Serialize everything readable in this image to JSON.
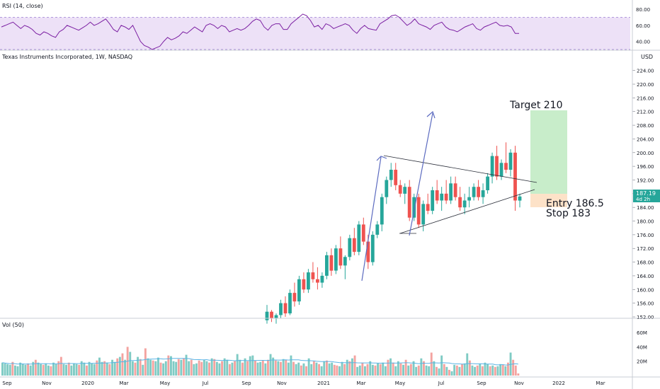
{
  "header": {
    "rsi_label": "RSI (14, close)",
    "main_title": "Texas Instruments Incorporated, 1W, NASDAQ",
    "currency": "USD",
    "vol_label": "Vol (50)"
  },
  "annotations": {
    "target_label": "Target 210",
    "entry_label": "Entry 186.5",
    "stop_label": "Stop  183",
    "last_price": "187.19",
    "last_price_sub": "4d 2h"
  },
  "chart_data": [
    {
      "type": "line",
      "name": "rsi",
      "ylim": [
        30,
        88
      ],
      "yticks": [
        80,
        60,
        40
      ],
      "overbought": 70,
      "oversold": 30,
      "values": [
        58,
        60,
        62,
        64,
        60,
        56,
        60,
        58,
        55,
        50,
        48,
        52,
        50,
        47,
        45,
        52,
        55,
        60,
        58,
        56,
        54,
        57,
        60,
        64,
        60,
        62,
        65,
        68,
        62,
        55,
        52,
        60,
        58,
        55,
        60,
        50,
        40,
        35,
        33,
        30,
        32,
        34,
        40,
        45,
        42,
        44,
        47,
        52,
        50,
        54,
        58,
        55,
        52,
        60,
        62,
        60,
        56,
        60,
        58,
        52,
        54,
        56,
        54,
        56,
        60,
        65,
        68,
        66,
        58,
        54,
        60,
        62,
        62,
        55,
        55,
        62,
        66,
        70,
        74,
        72,
        66,
        58,
        60,
        55,
        62,
        60,
        56,
        58,
        60,
        62,
        60,
        54,
        50,
        56,
        60,
        56,
        55,
        54,
        62,
        65,
        68,
        72,
        73,
        70,
        65,
        60,
        63,
        68,
        62,
        60,
        58,
        55,
        60,
        62,
        64,
        58,
        55,
        54,
        52,
        55,
        58,
        60,
        62,
        56,
        54,
        58,
        60,
        62,
        64,
        60,
        59,
        60,
        58,
        50,
        50
      ]
    },
    {
      "type": "candlestick",
      "name": "price",
      "ylim": [
        152,
        226
      ],
      "yticks": [
        224,
        220,
        216,
        212,
        208,
        204,
        200,
        196,
        192,
        188,
        184,
        180,
        176,
        172,
        168,
        164,
        160,
        156,
        152
      ],
      "xticks": [
        "Sep",
        "Nov",
        "2020",
        "Mar",
        "May",
        "Jul",
        "Sep",
        "Nov",
        "2021",
        "Mar",
        "May",
        "Jul",
        "Sep",
        "Nov",
        "2022",
        "Mar"
      ],
      "candles": [
        [
          151.0,
          155.5,
          150.0,
          153.5
        ],
        [
          153.5,
          154.0,
          150.5,
          151.5
        ],
        [
          151.5,
          153.0,
          150.0,
          152.5
        ],
        [
          152.5,
          157.0,
          151.5,
          156.0
        ],
        [
          156.0,
          158.0,
          152.0,
          153.0
        ],
        [
          153.0,
          160.0,
          152.5,
          159.0
        ],
        [
          159.0,
          162.0,
          155.0,
          156.5
        ],
        [
          156.5,
          164.0,
          155.5,
          163.0
        ],
        [
          163.0,
          165.0,
          159.0,
          160.0
        ],
        [
          160.0,
          166.0,
          159.0,
          165.0
        ],
        [
          165.0,
          168.0,
          162.0,
          163.0
        ],
        [
          163.0,
          166.5,
          160.0,
          162.0
        ],
        [
          162.0,
          165.0,
          160.5,
          164.0
        ],
        [
          164.0,
          171.0,
          163.0,
          170.0
        ],
        [
          170.0,
          172.0,
          164.0,
          165.5
        ],
        [
          165.5,
          173.0,
          164.5,
          172.0
        ],
        [
          172.0,
          175.5,
          166.0,
          167.0
        ],
        [
          167.0,
          170.0,
          163.0,
          169.5
        ],
        [
          169.5,
          176.0,
          168.5,
          175.0
        ],
        [
          175.0,
          178.0,
          170.0,
          171.0
        ],
        [
          171.0,
          180.0,
          170.0,
          179.0
        ],
        [
          179.0,
          181.0,
          173.0,
          174.0
        ],
        [
          174.0,
          176.0,
          166.0,
          168.0
        ],
        [
          168.0,
          177.0,
          167.0,
          176.0
        ],
        [
          176.0,
          180.0,
          175.0,
          179.0
        ],
        [
          179.0,
          188.0,
          177.0,
          187.0
        ],
        [
          187.0,
          193.0,
          185.0,
          192.0
        ],
        [
          192.0,
          197.0,
          190.0,
          195.0
        ],
        [
          195.0,
          197.0,
          189.0,
          190.5
        ],
        [
          190.5,
          192.0,
          187.0,
          188.0
        ],
        [
          188.0,
          191.0,
          185.0,
          190.0
        ],
        [
          190.0,
          192.0,
          180.0,
          181.0
        ],
        [
          181.0,
          188.0,
          180.0,
          187.0
        ],
        [
          187.0,
          188.0,
          178.0,
          179.0
        ],
        [
          179.0,
          186.0,
          177.0,
          185.0
        ],
        [
          185.0,
          188.0,
          182.0,
          183.0
        ],
        [
          183.0,
          190.0,
          182.0,
          189.0
        ],
        [
          189.0,
          192.0,
          185.0,
          186.0
        ],
        [
          186.0,
          190.0,
          183.0,
          188.0
        ],
        [
          188.0,
          192.0,
          185.0,
          186.0
        ],
        [
          186.0,
          193.0,
          185.0,
          191.0
        ],
        [
          191.0,
          193.0,
          186.0,
          187.0
        ],
        [
          187.0,
          190.0,
          183.0,
          184.0
        ],
        [
          184.0,
          188.0,
          182.0,
          186.0
        ],
        [
          186.0,
          190.0,
          184.0,
          187.0
        ],
        [
          187.0,
          191.0,
          186.0,
          190.0
        ],
        [
          190.0,
          192.0,
          186.0,
          187.0
        ],
        [
          187.0,
          191.0,
          185.0,
          189.0
        ],
        [
          189.0,
          194.0,
          188.0,
          193.0
        ],
        [
          193.0,
          200.0,
          191.0,
          199.0
        ],
        [
          199.0,
          202.0,
          192.0,
          193.0
        ],
        [
          193.0,
          198.0,
          192.0,
          197.0
        ],
        [
          197.0,
          203.0,
          194.0,
          195.0
        ],
        [
          195.0,
          201.0,
          193.0,
          200.0
        ],
        [
          200.0,
          202.0,
          183.0,
          186.0
        ],
        [
          186.0,
          188.0,
          184.0,
          187.19
        ]
      ]
    },
    {
      "type": "bar",
      "name": "volume",
      "ylim": [
        0,
        70
      ],
      "yticks": [
        "60M",
        "40M",
        "20M"
      ],
      "values": [
        18,
        17,
        16,
        15,
        19,
        14,
        13,
        18,
        16,
        15,
        17,
        14,
        19,
        22,
        18,
        16,
        15,
        17,
        14,
        13,
        18,
        16,
        20,
        26,
        16,
        15,
        18,
        14,
        17,
        16,
        15,
        20,
        18,
        14,
        19,
        17,
        16,
        21,
        25,
        19,
        20,
        18,
        16,
        22,
        19,
        24,
        26,
        31,
        22,
        40,
        33,
        20,
        18,
        26,
        23,
        15,
        38,
        24,
        22,
        21,
        20,
        25,
        18,
        17,
        20,
        28,
        27,
        20,
        19,
        23,
        22,
        24,
        29,
        20,
        22,
        16,
        17,
        21,
        19,
        22,
        20,
        18,
        24,
        23,
        19,
        17,
        20,
        24,
        22,
        16,
        18,
        20,
        30,
        22,
        18,
        24,
        20,
        27,
        28,
        21,
        18,
        19,
        21,
        17,
        22,
        30,
        25,
        21,
        20,
        19,
        23,
        22,
        18,
        28,
        19,
        16,
        18,
        14,
        17,
        13,
        24,
        16,
        20,
        18,
        16,
        13,
        20,
        21,
        17,
        18,
        15,
        14,
        13,
        19,
        16,
        22,
        20,
        24,
        28,
        12,
        14,
        18,
        13,
        16,
        20,
        15,
        14,
        17,
        16,
        18,
        13,
        22,
        24,
        18,
        13,
        20,
        17,
        15,
        22,
        14,
        16,
        20,
        12,
        14,
        24,
        20,
        14,
        13,
        32,
        20,
        12,
        10,
        28,
        16,
        12,
        8,
        6,
        15,
        14,
        12,
        16,
        17,
        31,
        21,
        14,
        12,
        14,
        16,
        13,
        18,
        16,
        13,
        14,
        12,
        13,
        16,
        15,
        13,
        18,
        32,
        22,
        14,
        3
      ],
      "up_flags": [
        1,
        1,
        1,
        1,
        0,
        1,
        1,
        1,
        1,
        1,
        0,
        1,
        1,
        0,
        1,
        1,
        0,
        1,
        1,
        0,
        1,
        1,
        0,
        0,
        1,
        1,
        0,
        1,
        1,
        1,
        0,
        1,
        1,
        0,
        1,
        1,
        1,
        0,
        1,
        1,
        0,
        1,
        0,
        1,
        1,
        0,
        1,
        0,
        1,
        0,
        1,
        1,
        0,
        1,
        0,
        1,
        0,
        1,
        1,
        0,
        1,
        1,
        0,
        1,
        1,
        0,
        1,
        1,
        1,
        0,
        1,
        0,
        1,
        1,
        0,
        1,
        1,
        0,
        0,
        1,
        1,
        0,
        1,
        0,
        1,
        1,
        0,
        1,
        1,
        0,
        1,
        0,
        1,
        1,
        0,
        1,
        0,
        1,
        1,
        0,
        1,
        1,
        0,
        1,
        0,
        1,
        1,
        0,
        1,
        0,
        1,
        0,
        1,
        1,
        0,
        1,
        1,
        0,
        1,
        0,
        1,
        1,
        0,
        1,
        0,
        1,
        1,
        0,
        1,
        1,
        0,
        0,
        1,
        1,
        0,
        1,
        0,
        1,
        0,
        1,
        1,
        0,
        1,
        0,
        1,
        1,
        0,
        1,
        0,
        1,
        1,
        0,
        1,
        0,
        1,
        1,
        0,
        1,
        0,
        1,
        0,
        1,
        1,
        0,
        1,
        0,
        1,
        1,
        0,
        1,
        0,
        1,
        1,
        0,
        1,
        0,
        1,
        1,
        0,
        1,
        0,
        1,
        1,
        0,
        1,
        1,
        0,
        1,
        0,
        1,
        1,
        0,
        1,
        0,
        1,
        1,
        0,
        1,
        0,
        1
      ]
    }
  ],
  "colors": {
    "up": "#26a69a",
    "down": "#ef5350",
    "up_vol": "#7fcbc4",
    "down_vol": "#f4a3a0",
    "rsi_line": "#7b1fa2",
    "rsi_band": "#ede1f7",
    "target_zone": "#c8edca",
    "stop_zone": "#fde2c8",
    "last_price": "#26a69a",
    "ma_line": "#5ab4e5",
    "trendline": "#2a2e39",
    "arrow": "#5c6bc0"
  }
}
